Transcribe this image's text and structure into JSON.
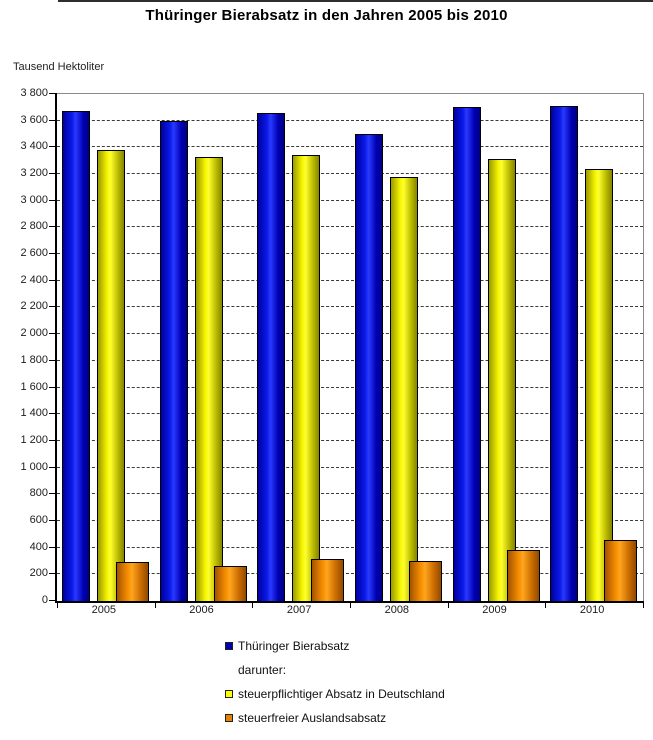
{
  "page": {
    "title": "Thüringer Bierabsatz in den Jahren 2005 bis 2010",
    "units_label": "Tausend Hektoliter"
  },
  "chart_data": {
    "type": "bar",
    "title": "Thüringer Bierabsatz in den Jahren 2005 bis 2010",
    "ylabel": "Tausend Hektoliter",
    "xlabel": "",
    "categories": [
      "2005",
      "2006",
      "2007",
      "2008",
      "2009",
      "2010"
    ],
    "series": [
      {
        "name": "Thüringer Bierabsatz",
        "color": "#0000cc",
        "values": [
          3670,
          3600,
          3655,
          3500,
          3700,
          3710
        ]
      },
      {
        "name": "steuerpflichtiger Absatz in Deutschland",
        "color": "#ffff00",
        "values": [
          3380,
          3330,
          3340,
          3175,
          3310,
          3240
        ]
      },
      {
        "name": "steuerfreier Auslandsabsatz",
        "color": "#e88000",
        "values": [
          290,
          260,
          315,
          300,
          385,
          460
        ]
      }
    ],
    "ylim": [
      0,
      3800
    ],
    "ytick_step": 200,
    "grid": "horizontal-dashed",
    "legend_position": "bottom"
  },
  "legend": {
    "rows": [
      {
        "swatch": "blue-square-icon",
        "color": "#0000b0",
        "label": "Thüringer Bierabsatz"
      },
      {
        "swatch": null,
        "color": null,
        "label": "darunter:"
      },
      {
        "swatch": "yellow-square-icon",
        "color": "#ffff00",
        "label": "steuerpflichtiger Absatz in Deutschland"
      },
      {
        "swatch": "orange-square-icon",
        "color": "#e88000",
        "label": "steuerfreier Auslandsabsatz"
      }
    ]
  }
}
